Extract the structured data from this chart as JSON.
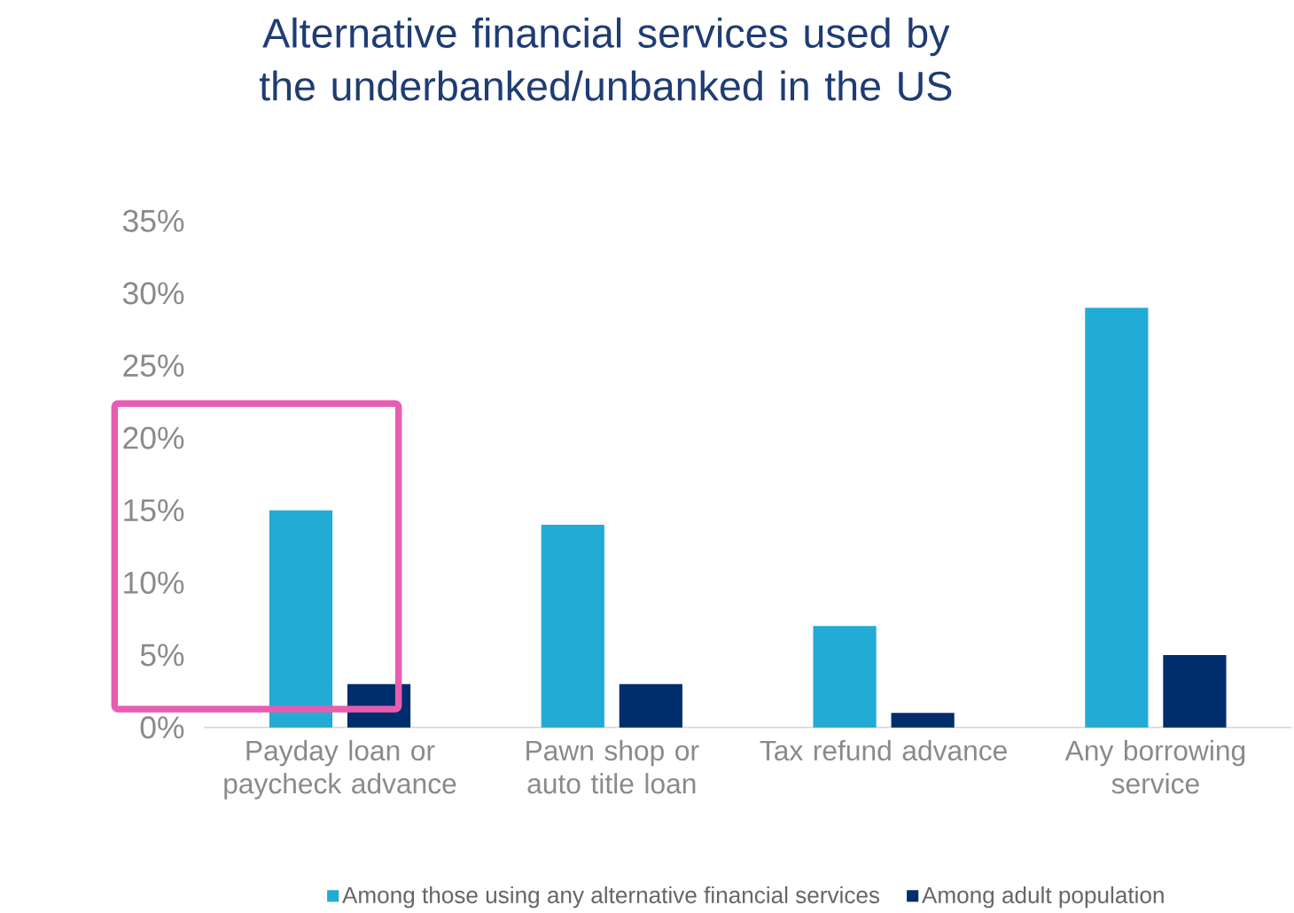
{
  "chart_data": {
    "type": "bar",
    "title": "Alternative financial services used by the underbanked/unbanked in the US",
    "categories": [
      "Payday loan or paycheck advance",
      "Pawn shop or auto title loan",
      "Tax refund advance",
      "Any borrowing service"
    ],
    "series": [
      {
        "name": "Among those using any alternative financial services",
        "color": "#22abd4",
        "values": [
          15,
          14,
          7,
          29
        ]
      },
      {
        "name": "Among adult population",
        "color": "#002d6b",
        "values": [
          3,
          3,
          1,
          5
        ]
      }
    ],
    "ylim": [
      0,
      35
    ],
    "yticks": [
      {
        "value": 0,
        "label": "0%"
      },
      {
        "value": 5,
        "label": "5%"
      },
      {
        "value": 10,
        "label": "10%"
      },
      {
        "value": 15,
        "label": "15%"
      },
      {
        "value": 20,
        "label": "20%"
      },
      {
        "value": 25,
        "label": "25%"
      },
      {
        "value": 30,
        "label": "30%"
      },
      {
        "value": 35,
        "label": "35%"
      }
    ],
    "grid": false,
    "legend": "bottom"
  }
}
